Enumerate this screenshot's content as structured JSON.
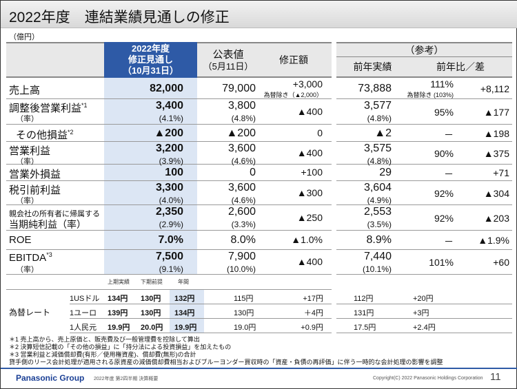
{
  "title": "2022年度　連結業績見通しの修正",
  "unit": "（億円）",
  "headers": {
    "forecast": [
      "2022年度",
      "修正見通し",
      "（10月31日）"
    ],
    "published": [
      "公表値",
      "（5月11日）"
    ],
    "revision": "修正額",
    "ref": "（参考）",
    "prev": "前年実績",
    "yoy": "前年比／差"
  },
  "rows": [
    {
      "label": "売上高",
      "sup": "",
      "sub": "",
      "forecast": "82,000",
      "forecast_rate": "",
      "published": "79,000",
      "published_rate": "",
      "revision": "+3,000",
      "revision_note": "為替除き（▲2,000）",
      "prev": "73,888",
      "prev_rate": "",
      "yoy": "111%",
      "yoy_note": "為替除き (103%)",
      "diff": "+8,112"
    },
    {
      "label": "調整後営業利益",
      "sup": "*1",
      "sub": "（率）",
      "forecast": "3,400",
      "forecast_rate": "(4.1%)",
      "published": "3,800",
      "published_rate": "(4.8%)",
      "revision": "▲400",
      "revision_note": "",
      "prev": "3,577",
      "prev_rate": "(4.8%)",
      "yoy": "95%",
      "yoy_note": "",
      "diff": "▲177"
    },
    {
      "label": "その他損益",
      "sup": "*2",
      "sub": "",
      "forecast": "▲200",
      "forecast_rate": "",
      "published": "▲200",
      "published_rate": "",
      "revision": "0",
      "revision_note": "",
      "prev": "▲2",
      "prev_rate": "",
      "yoy": "－",
      "yoy_note": "",
      "diff": "▲198"
    },
    {
      "label": "営業利益",
      "sup": "",
      "sub": "（率）",
      "forecast": "3,200",
      "forecast_rate": "(3.9%)",
      "published": "3,600",
      "published_rate": "(4.6%)",
      "revision": "▲400",
      "revision_note": "",
      "prev": "3,575",
      "prev_rate": "(4.8%)",
      "yoy": "90%",
      "yoy_note": "",
      "diff": "▲375"
    },
    {
      "label": "営業外損益",
      "sup": "",
      "sub": "",
      "forecast": "100",
      "forecast_rate": "",
      "published": "0",
      "published_rate": "",
      "revision": "+100",
      "revision_note": "",
      "prev": "29",
      "prev_rate": "",
      "yoy": "－",
      "yoy_note": "",
      "diff": "+71"
    },
    {
      "label": "税引前利益",
      "sup": "",
      "sub": "（率）",
      "forecast": "3,300",
      "forecast_rate": "(4.0%)",
      "published": "3,600",
      "published_rate": "(4.6%)",
      "revision": "▲300",
      "revision_note": "",
      "prev": "3,604",
      "prev_rate": "(4.9%)",
      "yoy": "92%",
      "yoy_note": "",
      "diff": "▲304"
    },
    {
      "label": "親会社の所有者に帰属する",
      "sup": "",
      "sub": "当期純利益（率）",
      "forecast": "2,350",
      "forecast_rate": "(2.9%)",
      "published": "2,600",
      "published_rate": "(3.3%)",
      "revision": "▲250",
      "revision_note": "",
      "prev": "2,553",
      "prev_rate": "(3.5%)",
      "yoy": "92%",
      "yoy_note": "",
      "diff": "▲203"
    },
    {
      "label": "ROE",
      "sup": "",
      "sub": "",
      "forecast": "7.0%",
      "forecast_rate": "",
      "published": "8.0%",
      "published_rate": "",
      "revision": "▲1.0%",
      "revision_note": "",
      "prev": "8.9%",
      "prev_rate": "",
      "yoy": "－",
      "yoy_note": "",
      "diff": "▲1.9%"
    },
    {
      "label": "EBITDA",
      "sup": "*3",
      "sub": "（率）",
      "forecast": "7,500",
      "forecast_rate": "(9.1%)",
      "published": "7,900",
      "published_rate": "(10.0%)",
      "revision": "▲400",
      "revision_note": "",
      "prev": "7,440",
      "prev_rate": "(10.1%)",
      "yoy": "101%",
      "yoy_note": "",
      "diff": "+60"
    }
  ],
  "fx": {
    "label": "為替レート",
    "cols": [
      "上期実績",
      "下期前提",
      "年間"
    ],
    "rows": [
      {
        "cur": "1USドル",
        "h1": "134円",
        "h2": "130円",
        "year": "132円",
        "published": "115円",
        "revision": "+17円",
        "prev": "112円",
        "diff": "+20円"
      },
      {
        "cur": "1ユーロ",
        "h1": "139円",
        "h2": "130円",
        "year": "134円",
        "published": "130円",
        "revision": "＋4円",
        "prev": "131円",
        "diff": "+3円"
      },
      {
        "cur": "1人民元",
        "h1": "19.9円",
        "h2": "20.0円",
        "year": "19.9円",
        "published": "19.0円",
        "revision": "+0.9円",
        "prev": "17.5円",
        "diff": "+2.4円"
      }
    ]
  },
  "footnotes": [
    "＊1  売上高から、売上原価と、販売費及び一般管理費を控除して算出",
    "＊2  決算短信記載の「その他の損益」に「持分法による投資損益」を加えたもの",
    "＊3  営業利益と減価償却費(有形／使用権資産)、償却費(無形)の合計",
    "      貸手側のリース会計処理が適用される原資産の減価償却費相当およびブルーヨンダー買収時の「資産・負債の再評価」に伴う一時的な会計処理の影響を調整"
  ],
  "footer": {
    "brand": "Panasonic Group",
    "subtitle": "2022年度 第2四半期  決算概要",
    "copyright": "Copyright(C) 2022 Panasonic Holdings Corporation",
    "page": "11"
  },
  "colors": {
    "accent": "#2e5aa6",
    "highlight": "#dce6f4"
  }
}
